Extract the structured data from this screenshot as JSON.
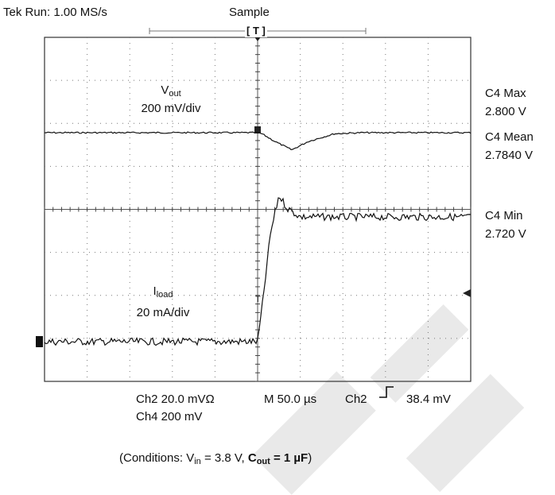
{
  "header": {
    "run_status": "Tek Run: 1.00 MS/s",
    "acq_mode": "Sample",
    "trigger_marker": "[ T ]"
  },
  "measurements": {
    "max_label": "C4 Max",
    "max_value": "2.800 V",
    "mean_label": "C4 Mean",
    "mean_value": "2.7840 V",
    "min_label": "C4 Min",
    "min_value": "2.720 V"
  },
  "traces": {
    "vout": {
      "name": "V",
      "sub": "out",
      "scale": "200 mV/div"
    },
    "iload": {
      "name": "I",
      "sub": "load",
      "scale": "20 mA/div"
    }
  },
  "footer": {
    "ch2_scale": "Ch2 20.0 mVΩ",
    "timebase": "M 50.0 µs",
    "trig_source": "Ch2",
    "trig_level": "38.4 mV",
    "ch4_scale": "Ch4 200 mV"
  },
  "caption": {
    "prefix": "(Conditions: V",
    "vin_sub": "in",
    "vin_value": " = 3.8 V, ",
    "cout_label": "C",
    "cout_sub": "out",
    "cout_value": " = 1 µF",
    "suffix": ")"
  },
  "chart_data": {
    "type": "line",
    "grid": true,
    "x_divisions": 10,
    "y_divisions": 8,
    "x_unit": "µs",
    "x_per_div": 50,
    "series": [
      {
        "name": "Vout",
        "units": "V",
        "x": [
          -250,
          -20,
          0,
          5,
          20,
          40,
          60,
          90,
          120,
          250
        ],
        "y": [
          2.8,
          2.8,
          2.8,
          2.795,
          2.76,
          2.72,
          2.76,
          2.795,
          2.8,
          2.8
        ]
      },
      {
        "name": "Iload",
        "units": "mA",
        "x": [
          -250,
          0,
          5,
          15,
          25,
          35,
          50,
          70,
          100,
          250
        ],
        "y": [
          0,
          0,
          15,
          50,
          68,
          62,
          58,
          58,
          58,
          58
        ]
      }
    ]
  }
}
